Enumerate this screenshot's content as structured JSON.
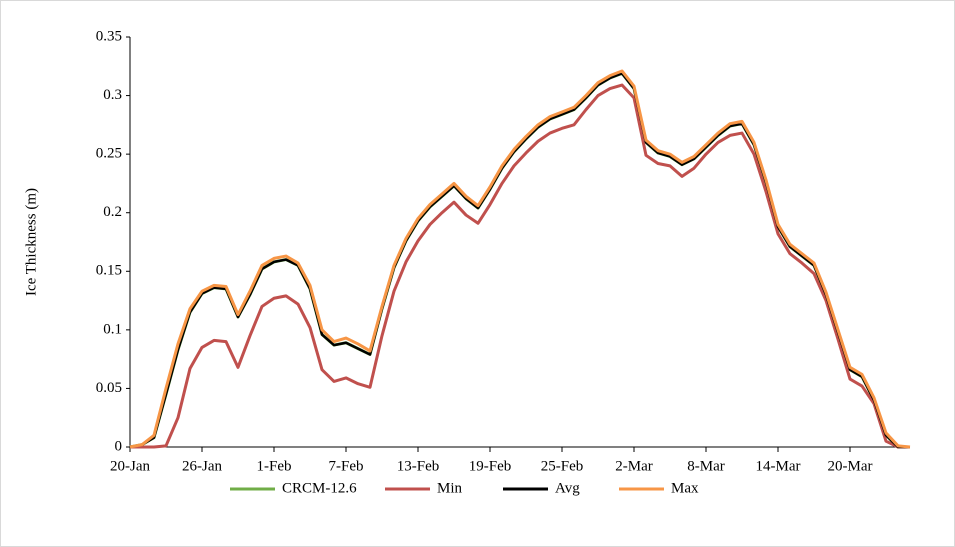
{
  "chart_data": {
    "type": "line",
    "y_label": "Ice Thickness (m)",
    "categories": [
      "20-Jan",
      null,
      null,
      null,
      null,
      null,
      "26-Jan",
      null,
      null,
      null,
      null,
      null,
      "1-Feb",
      null,
      null,
      null,
      null,
      null,
      "7-Feb",
      null,
      null,
      null,
      null,
      null,
      "13-Feb",
      null,
      null,
      null,
      null,
      null,
      "19-Feb",
      null,
      null,
      null,
      null,
      null,
      "25-Feb",
      null,
      null,
      null,
      null,
      null,
      "2-Mar",
      null,
      null,
      null,
      null,
      null,
      "8-Mar",
      null,
      null,
      null,
      null,
      null,
      "14-Mar",
      null,
      null,
      null,
      null,
      null,
      "20-Mar",
      null,
      null,
      null,
      null,
      null
    ],
    "ylim": [
      0,
      0.35
    ],
    "yticks": [
      0,
      0.05,
      0.1,
      0.15,
      0.2,
      0.25,
      0.3,
      0.35
    ],
    "grid": false,
    "legend": "bottom",
    "series": [
      {
        "name": "CRCM-12.6",
        "color": "#70ad47",
        "values": [
          0,
          0.002,
          0.008,
          0.045,
          0.083,
          0.115,
          0.131,
          0.136,
          0.135,
          0.111,
          0.13,
          0.152,
          0.158,
          0.16,
          0.155,
          0.135,
          0.096,
          0.087,
          0.089,
          0.084,
          0.079,
          0.118,
          0.153,
          0.176,
          0.193,
          0.205,
          0.214,
          0.223,
          0.212,
          0.204,
          0.22,
          0.238,
          0.252,
          0.263,
          0.273,
          0.28,
          0.284,
          0.288,
          0.298,
          0.309,
          0.315,
          0.319,
          0.306,
          0.26,
          0.251,
          0.248,
          0.241,
          0.246,
          0.256,
          0.266,
          0.274,
          0.276,
          0.258,
          0.226,
          0.188,
          0.171,
          0.163,
          0.155,
          0.13,
          0.098,
          0.066,
          0.06,
          0.04,
          0.01,
          0,
          0
        ]
      },
      {
        "name": "Min",
        "color": "#c0504d",
        "values": [
          0,
          0,
          0,
          0.001,
          0.025,
          0.067,
          0.085,
          0.091,
          0.09,
          0.068,
          0.095,
          0.12,
          0.127,
          0.129,
          0.122,
          0.102,
          0.066,
          0.056,
          0.059,
          0.054,
          0.051,
          0.095,
          0.133,
          0.158,
          0.176,
          0.19,
          0.2,
          0.209,
          0.198,
          0.191,
          0.207,
          0.225,
          0.24,
          0.251,
          0.261,
          0.268,
          0.272,
          0.275,
          0.288,
          0.3,
          0.306,
          0.309,
          0.298,
          0.249,
          0.242,
          0.24,
          0.231,
          0.238,
          0.25,
          0.26,
          0.266,
          0.268,
          0.25,
          0.218,
          0.182,
          0.165,
          0.157,
          0.148,
          0.125,
          0.092,
          0.058,
          0.052,
          0.037,
          0.005,
          0,
          0
        ]
      },
      {
        "name": "Avg",
        "color": "#000000",
        "values": [
          0,
          0.002,
          0.008,
          0.045,
          0.083,
          0.115,
          0.131,
          0.136,
          0.135,
          0.111,
          0.13,
          0.152,
          0.158,
          0.16,
          0.155,
          0.135,
          0.096,
          0.087,
          0.089,
          0.084,
          0.079,
          0.118,
          0.153,
          0.176,
          0.193,
          0.205,
          0.214,
          0.223,
          0.212,
          0.204,
          0.22,
          0.238,
          0.252,
          0.263,
          0.273,
          0.28,
          0.284,
          0.288,
          0.298,
          0.309,
          0.315,
          0.319,
          0.306,
          0.26,
          0.251,
          0.248,
          0.241,
          0.246,
          0.256,
          0.266,
          0.274,
          0.276,
          0.258,
          0.226,
          0.188,
          0.171,
          0.163,
          0.155,
          0.13,
          0.098,
          0.066,
          0.06,
          0.04,
          0.01,
          0,
          0
        ]
      },
      {
        "name": "Max",
        "color": "#f79646",
        "values": [
          0,
          0.002,
          0.01,
          0.05,
          0.088,
          0.118,
          0.133,
          0.138,
          0.137,
          0.113,
          0.133,
          0.155,
          0.161,
          0.163,
          0.157,
          0.138,
          0.1,
          0.09,
          0.093,
          0.088,
          0.082,
          0.12,
          0.155,
          0.178,
          0.195,
          0.207,
          0.216,
          0.225,
          0.214,
          0.206,
          0.222,
          0.24,
          0.254,
          0.265,
          0.275,
          0.282,
          0.286,
          0.29,
          0.3,
          0.311,
          0.317,
          0.321,
          0.308,
          0.262,
          0.253,
          0.25,
          0.243,
          0.248,
          0.258,
          0.268,
          0.276,
          0.278,
          0.26,
          0.228,
          0.19,
          0.173,
          0.165,
          0.157,
          0.132,
          0.1,
          0.068,
          0.062,
          0.042,
          0.012,
          0.001,
          0
        ]
      }
    ]
  }
}
